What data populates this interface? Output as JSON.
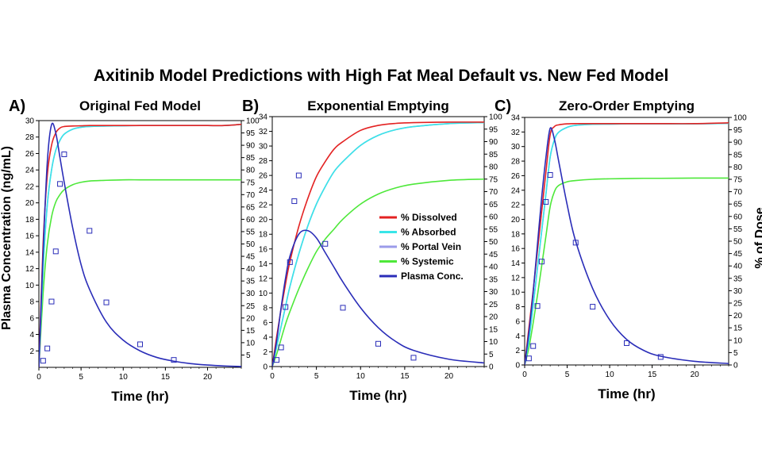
{
  "title": "Axitinib Model Predictions with High Fat Meal Default vs. New Fed Model",
  "ylabel_left": "Plasma Concentration (ng/mL)",
  "ylabel_right": "% of Dose",
  "legend": [
    {
      "label": "% Dissolved",
      "color": "#e32222"
    },
    {
      "label": "% Absorbed",
      "color": "#39e5e8"
    },
    {
      "label": "% Portal Vein",
      "color": "#9b9bea"
    },
    {
      "label": "% Systemic",
      "color": "#4ee83a"
    },
    {
      "label": "Plasma Conc.",
      "color": "#2a2db8"
    }
  ],
  "chart_data": [
    {
      "type": "line",
      "panel_label": "A)",
      "title": "Original Fed Model",
      "xlabel": "Time (hr)",
      "xlim": [
        0,
        24
      ],
      "xticks": [
        0,
        5,
        10,
        15,
        20
      ],
      "ylim_left": [
        0,
        30
      ],
      "yticks_left": [
        2,
        4,
        6,
        8,
        10,
        12,
        14,
        16,
        18,
        20,
        22,
        24,
        26,
        28,
        30
      ],
      "ylim_right": [
        0,
        100
      ],
      "yticks_right": [
        5,
        10,
        15,
        20,
        25,
        30,
        35,
        40,
        45,
        50,
        55,
        60,
        65,
        70,
        75,
        80,
        85,
        90,
        95,
        100
      ],
      "x": [
        0,
        0.5,
        1,
        1.5,
        2,
        2.5,
        3,
        4,
        5,
        6,
        8,
        10,
        12,
        14,
        16,
        18,
        20,
        22,
        24
      ],
      "series": [
        {
          "name": "% Dissolved",
          "axis": "right",
          "values": [
            0,
            50,
            78,
            90,
            95,
            97,
            97.6,
            97.8,
            97.9,
            98,
            98,
            98,
            98,
            98,
            98,
            98,
            98,
            98,
            98.5
          ]
        },
        {
          "name": "% Absorbed",
          "axis": "right",
          "values": [
            0,
            40,
            66,
            80,
            88,
            92,
            94.5,
            96.5,
            97.3,
            97.6,
            97.8,
            97.9,
            98,
            98,
            98,
            98,
            98,
            98,
            98.5
          ]
        },
        {
          "name": "% Portal Vein",
          "axis": "right",
          "values": [
            0,
            40,
            66,
            80,
            88,
            92,
            94.5,
            96.5,
            97.3,
            97.6,
            97.8,
            97.9,
            98,
            98,
            98,
            98,
            98,
            98,
            98.5
          ]
        },
        {
          "name": "% Systemic",
          "axis": "right",
          "values": [
            0,
            30,
            50,
            61,
            67,
            70,
            72,
            74,
            75,
            75.5,
            75.8,
            76,
            76,
            76,
            76,
            76,
            76,
            76,
            76
          ]
        },
        {
          "name": "Plasma Conc.",
          "axis": "left",
          "values": [
            0,
            14,
            25,
            29.5,
            28.5,
            25.5,
            22.5,
            17,
            12.5,
            9.5,
            5.5,
            3.3,
            2,
            1.2,
            0.75,
            0.45,
            0.28,
            0.17,
            0.1
          ]
        }
      ],
      "observed": {
        "x": [
          0.5,
          1,
          1.5,
          2,
          2.5,
          3,
          6,
          8,
          12,
          16
        ],
        "y": [
          0.8,
          2.3,
          8,
          14.1,
          22.3,
          25.9,
          16.6,
          7.9,
          2.8,
          0.9
        ]
      }
    },
    {
      "type": "line",
      "panel_label": "B)",
      "title": "Exponential Emptying",
      "xlabel": "Time (hr)",
      "xlim": [
        0,
        24
      ],
      "xticks": [
        0,
        5,
        10,
        15,
        20
      ],
      "ylim_left": [
        0,
        34
      ],
      "yticks_left": [
        0,
        2,
        4,
        6,
        8,
        10,
        12,
        14,
        16,
        18,
        20,
        22,
        24,
        26,
        28,
        30,
        32,
        34
      ],
      "ylim_right": [
        0,
        100
      ],
      "yticks_right": [
        0,
        5,
        10,
        15,
        20,
        25,
        30,
        35,
        40,
        45,
        50,
        55,
        60,
        65,
        70,
        75,
        80,
        85,
        90,
        95,
        100
      ],
      "x": [
        0,
        0.5,
        1,
        1.5,
        2,
        3,
        4,
        5,
        6,
        7,
        8,
        10,
        12,
        14,
        16,
        20,
        24
      ],
      "series": [
        {
          "name": "% Dissolved",
          "axis": "right",
          "values": [
            0,
            12,
            23,
            33,
            42,
            56,
            67,
            76,
            82,
            87,
            90,
            94.5,
            96.5,
            97.3,
            97.6,
            97.8,
            97.8
          ]
        },
        {
          "name": "% Absorbed",
          "axis": "right",
          "values": [
            0,
            8,
            16,
            24,
            32,
            45,
            56,
            65,
            72,
            78,
            82,
            88.5,
            92.5,
            94.8,
            96,
            97.2,
            97.6
          ]
        },
        {
          "name": "% Portal Vein",
          "axis": "right",
          "values": [
            0,
            8,
            16,
            24,
            32,
            45,
            56,
            65,
            72,
            78,
            82,
            88.5,
            92.5,
            94.8,
            96,
            97.2,
            97.6
          ]
        },
        {
          "name": "% Systemic",
          "axis": "right",
          "values": [
            0,
            5,
            11,
            17,
            22,
            31,
            39,
            46,
            51,
            55,
            59,
            65,
            69,
            71.5,
            73,
            74.5,
            75
          ]
        },
        {
          "name": "Plasma Conc.",
          "axis": "left",
          "values": [
            0,
            3.5,
            8,
            12,
            15,
            18,
            18.5,
            17.5,
            15.5,
            13.5,
            11.5,
            8,
            5.3,
            3.4,
            2.2,
            1,
            0.5
          ]
        }
      ],
      "observed": {
        "x": [
          0.5,
          1,
          1.5,
          2,
          2.5,
          3,
          6,
          8,
          12,
          16
        ],
        "y": [
          0.9,
          2.6,
          8.1,
          14.2,
          22.5,
          26,
          16.7,
          8,
          3.1,
          1.2
        ]
      }
    },
    {
      "type": "line",
      "panel_label": "C)",
      "title": "Zero-Order Emptying",
      "xlabel": "Time (hr)",
      "xlim": [
        0,
        24
      ],
      "xticks": [
        0,
        5,
        10,
        15,
        20
      ],
      "ylim_left": [
        0,
        34
      ],
      "yticks_left": [
        0,
        2,
        4,
        6,
        8,
        10,
        12,
        14,
        16,
        18,
        20,
        22,
        24,
        26,
        28,
        30,
        32,
        34
      ],
      "ylim_right": [
        0,
        100
      ],
      "yticks_right": [
        0,
        5,
        10,
        15,
        20,
        25,
        30,
        35,
        40,
        45,
        50,
        55,
        60,
        65,
        70,
        75,
        80,
        85,
        90,
        95,
        100
      ],
      "x": [
        0,
        0.5,
        1,
        1.5,
        2,
        2.5,
        3,
        3.5,
        4,
        5,
        6,
        8,
        10,
        12,
        14,
        16,
        20,
        24
      ],
      "series": [
        {
          "name": "% Dissolved",
          "axis": "right",
          "values": [
            0,
            15,
            30,
            46,
            62,
            78,
            93,
            96.3,
            97,
            97.4,
            97.5,
            97.5,
            97.5,
            97.5,
            97.5,
            97.5,
            97.5,
            97.8
          ]
        },
        {
          "name": "% Absorbed",
          "axis": "right",
          "values": [
            0,
            10,
            24,
            39,
            54,
            69,
            84,
            91,
            94,
            96,
            96.8,
            97.2,
            97.3,
            97.4,
            97.4,
            97.4,
            97.4,
            97.6
          ]
        },
        {
          "name": "% Portal Vein",
          "axis": "right",
          "values": [
            0,
            10,
            24,
            39,
            54,
            69,
            84,
            91,
            94,
            96,
            96.8,
            97.2,
            97.3,
            97.4,
            97.4,
            97.4,
            97.4,
            97.6
          ]
        },
        {
          "name": "% Systemic",
          "axis": "right",
          "values": [
            0,
            7,
            17,
            28,
            40,
            52,
            64,
            70,
            72.5,
            74,
            74.5,
            75,
            75.2,
            75.3,
            75.4,
            75.4,
            75.5,
            75.5
          ]
        },
        {
          "name": "Plasma Conc.",
          "axis": "left",
          "values": [
            0,
            4.5,
            10,
            16.5,
            23,
            28.5,
            32.5,
            31,
            28,
            22,
            17,
            10.5,
            6.2,
            3.5,
            2,
            1.2,
            0.5,
            0.2
          ]
        }
      ],
      "observed": {
        "x": [
          0.5,
          1,
          1.5,
          2,
          2.5,
          3,
          6,
          8,
          12,
          16
        ],
        "y": [
          0.9,
          2.6,
          8.1,
          14.2,
          22.4,
          26.1,
          16.8,
          8,
          3,
          1.1
        ]
      }
    }
  ]
}
